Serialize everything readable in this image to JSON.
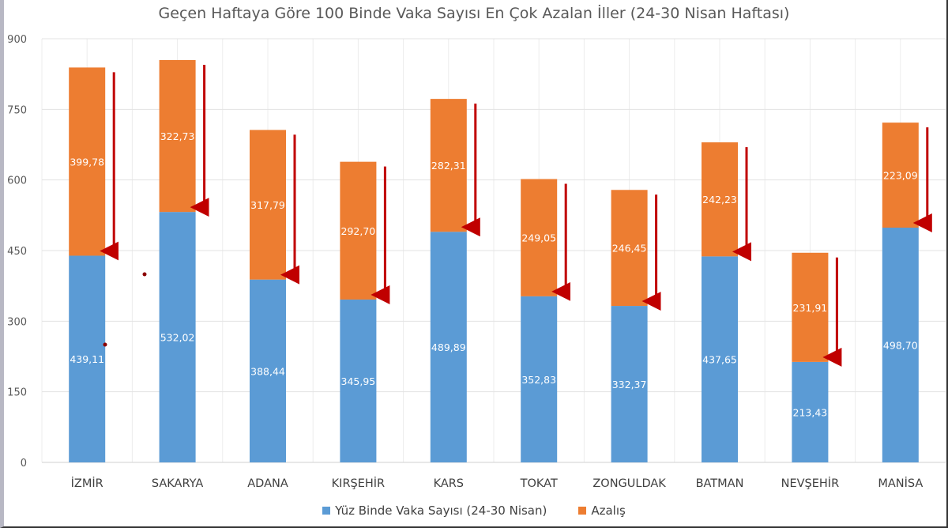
{
  "chart_data": {
    "type": "bar",
    "stacked": true,
    "title": "Geçen Haftaya Göre 100 Binde Vaka Sayısı En Çok Azalan İller (24-30 Nisan Haftası)",
    "categories": [
      "İZMİR",
      "SAKARYA",
      "ADANA",
      "KIRŞEHİR",
      "KARS",
      "TOKAT",
      "ZONGULDAK",
      "BATMAN",
      "NEVŞEHİR",
      "MANİSA"
    ],
    "series": [
      {
        "name": "Yüz Binde Vaka Sayısı (24-30 Nisan)",
        "color": "#5b9bd5",
        "values": [
          439.11,
          532.02,
          388.44,
          345.95,
          489.89,
          352.83,
          332.37,
          437.65,
          213.43,
          498.7
        ],
        "labels": [
          "439,11",
          "532,02",
          "388,44",
          "345,95",
          "489,89",
          "352,83",
          "332,37",
          "437,65",
          "213,43",
          "498,70"
        ]
      },
      {
        "name": "Azalış",
        "color": "#ed7d31",
        "values": [
          399.78,
          322.73,
          317.79,
          292.7,
          282.31,
          249.05,
          246.45,
          242.23,
          231.91,
          223.09
        ],
        "labels": [
          "399,78",
          "322,73",
          "317,79",
          "292,70",
          "282,31",
          "249,05",
          "246,45",
          "242,23",
          "231,91",
          "223,09"
        ]
      }
    ],
    "ylim": [
      0,
      900
    ],
    "yticks": [
      "0",
      "150",
      "300",
      "450",
      "600",
      "750",
      "900"
    ],
    "grid": true,
    "legend": "bottom",
    "annotation_color": "#c00000",
    "annotations": "downward arrow beside each bar spanning the decrease"
  }
}
